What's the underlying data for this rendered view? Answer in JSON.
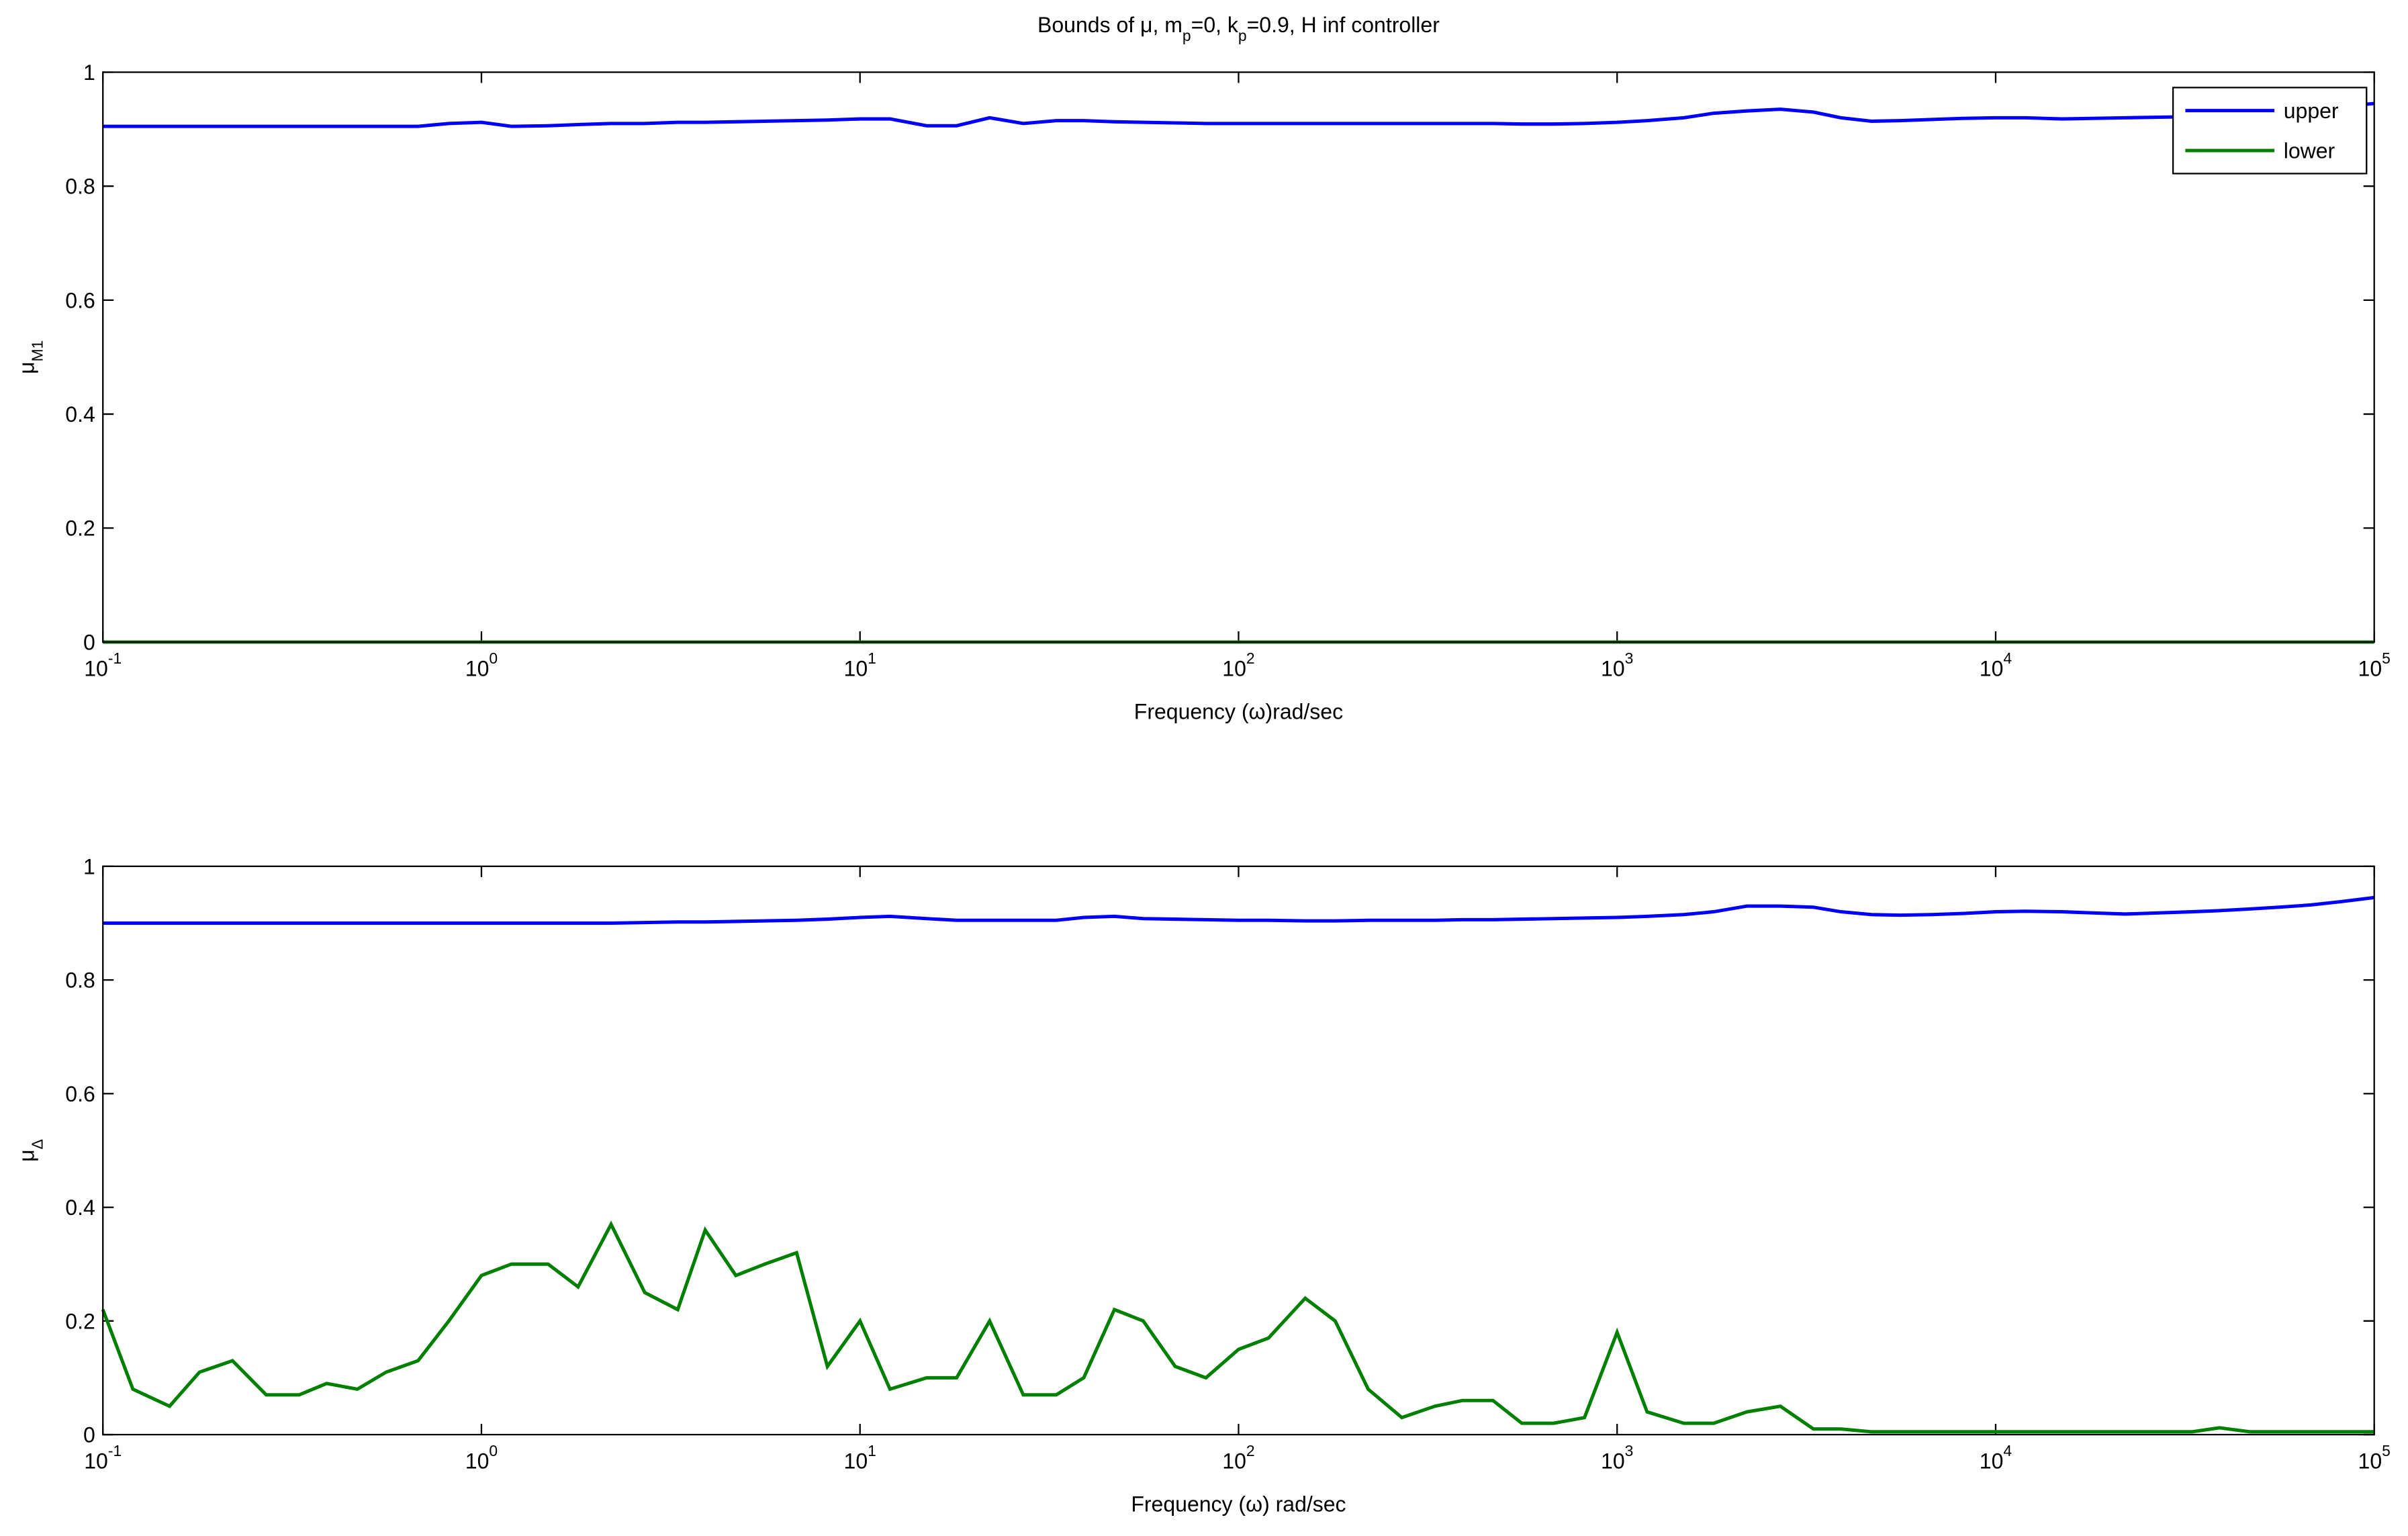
{
  "chart_data": [
    {
      "type": "line",
      "title": [
        {
          "text": "Bounds of μ, m"
        },
        {
          "sub": "p"
        },
        {
          "text": "=0, k"
        },
        {
          "sub": "p"
        },
        {
          "text": "=0.9, H inf controller"
        }
      ],
      "xlabel": "Frequency (ω)rad/sec",
      "ylabel": {
        "symbol": "μ",
        "subscript": "M1"
      },
      "xscale": "log",
      "xlim": [
        0.1,
        100000
      ],
      "ylim": [
        0,
        1
      ],
      "xticks": [
        {
          "value": 0.1,
          "label": {
            "base": "10",
            "exponent": "-1"
          }
        },
        {
          "value": 1,
          "label": {
            "base": "10",
            "exponent": "0"
          }
        },
        {
          "value": 10,
          "label": {
            "base": "10",
            "exponent": "1"
          }
        },
        {
          "value": 100,
          "label": {
            "base": "10",
            "exponent": "2"
          }
        },
        {
          "value": 1000,
          "label": {
            "base": "10",
            "exponent": "3"
          }
        },
        {
          "value": 10000,
          "label": {
            "base": "10",
            "exponent": "4"
          }
        },
        {
          "value": 100000,
          "label": {
            "base": "10",
            "exponent": "5"
          }
        }
      ],
      "yticks": [
        0,
        0.2,
        0.4,
        0.6,
        0.8,
        1
      ],
      "legend": "northeast",
      "x": [
        0.1,
        0.12,
        0.15,
        0.18,
        0.22,
        0.27,
        0.33,
        0.39,
        0.47,
        0.56,
        0.68,
        0.82,
        1,
        1.2,
        1.5,
        1.8,
        2.2,
        2.7,
        3.3,
        3.9,
        4.7,
        5.6,
        6.8,
        8.2,
        10,
        12,
        15,
        18,
        22,
        27,
        33,
        39,
        47,
        56,
        68,
        82,
        100,
        120,
        150,
        180,
        220,
        270,
        330,
        390,
        470,
        560,
        680,
        820,
        1000,
        1200,
        1500,
        1800,
        2200,
        2700,
        3300,
        3900,
        4700,
        5600,
        6800,
        8200,
        10000,
        12000,
        15000,
        18000,
        22000,
        27000,
        33000,
        39000,
        47000,
        56000,
        68000,
        82000,
        100000
      ],
      "series": [
        {
          "name": "upper",
          "color": "#0000ff",
          "values": [
            0.905,
            0.905,
            0.905,
            0.905,
            0.905,
            0.905,
            0.905,
            0.905,
            0.905,
            0.905,
            0.905,
            0.91,
            0.912,
            0.905,
            0.906,
            0.908,
            0.91,
            0.91,
            0.912,
            0.912,
            0.913,
            0.914,
            0.915,
            0.916,
            0.918,
            0.918,
            0.906,
            0.906,
            0.92,
            0.91,
            0.915,
            0.915,
            0.913,
            0.912,
            0.911,
            0.91,
            0.91,
            0.91,
            0.91,
            0.91,
            0.91,
            0.91,
            0.91,
            0.91,
            0.91,
            0.909,
            0.909,
            0.91,
            0.912,
            0.915,
            0.92,
            0.928,
            0.932,
            0.935,
            0.93,
            0.92,
            0.914,
            0.915,
            0.917,
            0.919,
            0.92,
            0.92,
            0.918,
            0.919,
            0.92,
            0.921,
            0.922,
            0.925,
            0.93,
            0.935,
            0.938,
            0.94,
            0.945
          ]
        },
        {
          "name": "lower",
          "color": "#008000",
          "values": [
            0,
            0,
            0,
            0,
            0,
            0,
            0,
            0,
            0,
            0,
            0,
            0,
            0,
            0,
            0,
            0,
            0,
            0,
            0,
            0,
            0,
            0,
            0,
            0,
            0,
            0,
            0,
            0,
            0,
            0,
            0,
            0,
            0,
            0,
            0,
            0,
            0,
            0,
            0,
            0,
            0,
            0,
            0,
            0,
            0,
            0,
            0,
            0,
            0,
            0,
            0,
            0,
            0,
            0,
            0,
            0,
            0,
            0,
            0,
            0,
            0,
            0,
            0,
            0,
            0,
            0,
            0,
            0,
            0,
            0,
            0,
            0,
            0
          ]
        }
      ]
    },
    {
      "type": "line",
      "xlabel": "Frequency (ω) rad/sec",
      "ylabel": {
        "symbol": "μ",
        "subscript": "Δ"
      },
      "xscale": "log",
      "xlim": [
        0.1,
        100000
      ],
      "ylim": [
        0,
        1
      ],
      "xticks": [
        {
          "value": 0.1,
          "label": {
            "base": "10",
            "exponent": "-1"
          }
        },
        {
          "value": 1,
          "label": {
            "base": "10",
            "exponent": "0"
          }
        },
        {
          "value": 10,
          "label": {
            "base": "10",
            "exponent": "1"
          }
        },
        {
          "value": 100,
          "label": {
            "base": "10",
            "exponent": "2"
          }
        },
        {
          "value": 1000,
          "label": {
            "base": "10",
            "exponent": "3"
          }
        },
        {
          "value": 10000,
          "label": {
            "base": "10",
            "exponent": "4"
          }
        },
        {
          "value": 100000,
          "label": {
            "base": "10",
            "exponent": "5"
          }
        }
      ],
      "yticks": [
        0,
        0.2,
        0.4,
        0.6,
        0.8,
        1
      ],
      "x": [
        0.1,
        0.12,
        0.15,
        0.18,
        0.22,
        0.27,
        0.33,
        0.39,
        0.47,
        0.56,
        0.68,
        0.82,
        1,
        1.2,
        1.5,
        1.8,
        2.2,
        2.7,
        3.3,
        3.9,
        4.7,
        5.6,
        6.8,
        8.2,
        10,
        12,
        15,
        18,
        22,
        27,
        33,
        39,
        47,
        56,
        68,
        82,
        100,
        120,
        150,
        180,
        220,
        270,
        330,
        390,
        470,
        560,
        680,
        820,
        1000,
        1200,
        1500,
        1800,
        2200,
        2700,
        3300,
        3900,
        4700,
        5600,
        6800,
        8200,
        10000,
        12000,
        15000,
        18000,
        22000,
        27000,
        33000,
        39000,
        47000,
        56000,
        68000,
        82000,
        100000
      ],
      "series": [
        {
          "name": "upper",
          "color": "#0000ff",
          "values": [
            0.9,
            0.9,
            0.9,
            0.9,
            0.9,
            0.9,
            0.9,
            0.9,
            0.9,
            0.9,
            0.9,
            0.9,
            0.9,
            0.9,
            0.9,
            0.9,
            0.9,
            0.901,
            0.902,
            0.902,
            0.903,
            0.904,
            0.905,
            0.907,
            0.91,
            0.912,
            0.908,
            0.905,
            0.905,
            0.905,
            0.905,
            0.91,
            0.912,
            0.908,
            0.907,
            0.906,
            0.905,
            0.905,
            0.904,
            0.904,
            0.905,
            0.905,
            0.905,
            0.906,
            0.906,
            0.907,
            0.908,
            0.909,
            0.91,
            0.912,
            0.915,
            0.92,
            0.93,
            0.93,
            0.928,
            0.92,
            0.915,
            0.914,
            0.915,
            0.917,
            0.92,
            0.921,
            0.92,
            0.918,
            0.916,
            0.918,
            0.92,
            0.922,
            0.925,
            0.928,
            0.932,
            0.938,
            0.945
          ]
        },
        {
          "name": "lower",
          "color": "#008000",
          "values": [
            0.22,
            0.08,
            0.05,
            0.11,
            0.13,
            0.07,
            0.07,
            0.09,
            0.08,
            0.11,
            0.13,
            0.2,
            0.28,
            0.3,
            0.3,
            0.26,
            0.37,
            0.25,
            0.22,
            0.36,
            0.28,
            0.3,
            0.32,
            0.12,
            0.2,
            0.08,
            0.1,
            0.1,
            0.2,
            0.07,
            0.07,
            0.1,
            0.22,
            0.2,
            0.12,
            0.1,
            0.15,
            0.17,
            0.24,
            0.2,
            0.08,
            0.03,
            0.05,
            0.06,
            0.06,
            0.02,
            0.02,
            0.03,
            0.18,
            0.04,
            0.02,
            0.02,
            0.04,
            0.05,
            0.01,
            0.01,
            0.005,
            0.005,
            0.005,
            0.005,
            0.005,
            0.005,
            0.005,
            0.005,
            0.005,
            0.005,
            0.005,
            0.012,
            0.005,
            0.005,
            0.005,
            0.005,
            0.005
          ]
        }
      ]
    }
  ]
}
